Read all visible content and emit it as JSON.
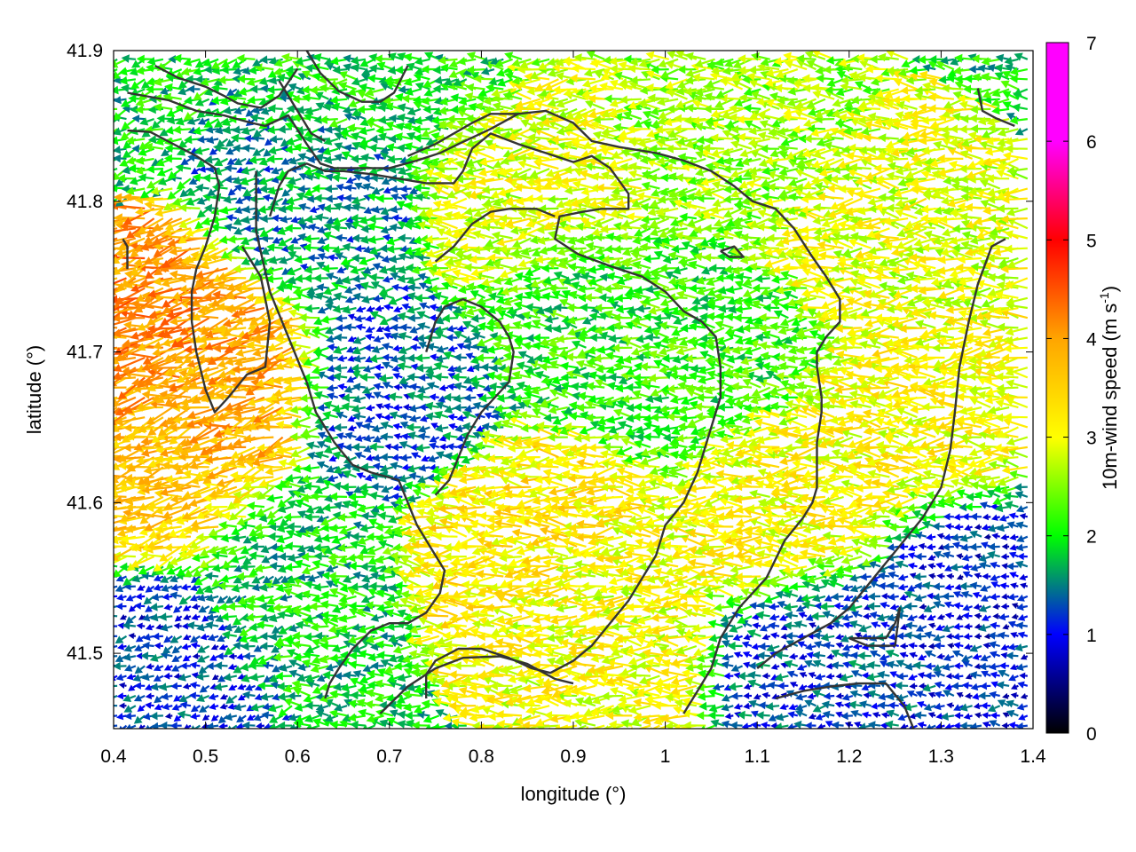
{
  "chart_data": {
    "type": "vector-field",
    "xlabel": "longitude (°)",
    "ylabel": "latitude (°)",
    "xlim": [
      0.4,
      1.4
    ],
    "ylim": [
      41.45,
      41.9
    ],
    "xticks": [
      "0.4",
      "0.5",
      "0.6",
      "0.7",
      "0.8",
      "0.9",
      "1",
      "1.1",
      "1.2",
      "1.3",
      "1.4"
    ],
    "yticks": [
      "41.5",
      "41.6",
      "41.7",
      "41.8",
      "41.9"
    ],
    "colorbar": {
      "label_main": "10m-wind speed (m s",
      "label_sup": "-1",
      "label_close": ")",
      "range": [
        0,
        7
      ],
      "ticks": [
        "0",
        "1",
        "2",
        "3",
        "4",
        "5",
        "6",
        "7"
      ],
      "colors": [
        "#000000",
        "#0000ff",
        "#00ff00",
        "#ffff00",
        "#ffa500",
        "#ff0000",
        "#ff00ff"
      ]
    },
    "wind_speed_regions": [
      {
        "lon": 0.47,
        "lat": 41.7,
        "speed": 4.8
      },
      {
        "lon": 0.52,
        "lat": 41.68,
        "speed": 4.5
      },
      {
        "lon": 0.46,
        "lat": 41.62,
        "speed": 4.2
      },
      {
        "lon": 0.65,
        "lat": 41.8,
        "speed": 1.8
      },
      {
        "lon": 0.72,
        "lat": 41.67,
        "speed": 1.5
      },
      {
        "lon": 0.85,
        "lat": 41.8,
        "speed": 3.4
      },
      {
        "lon": 0.9,
        "lat": 41.72,
        "speed": 2.4
      },
      {
        "lon": 0.85,
        "lat": 41.58,
        "speed": 3.8
      },
      {
        "lon": 0.93,
        "lat": 41.52,
        "speed": 3.5
      },
      {
        "lon": 1.15,
        "lat": 41.6,
        "speed": 3.6
      },
      {
        "lon": 1.25,
        "lat": 41.78,
        "speed": 3.4
      },
      {
        "lon": 1.3,
        "lat": 41.65,
        "speed": 3.6
      },
      {
        "lon": 1.35,
        "lat": 41.55,
        "speed": 1.2
      },
      {
        "lon": 0.45,
        "lat": 41.5,
        "speed": 1.3
      },
      {
        "lon": 1.2,
        "lat": 41.5,
        "speed": 1.4
      },
      {
        "lon": 0.6,
        "lat": 41.55,
        "speed": 2.2
      },
      {
        "lon": 1.05,
        "lat": 41.7,
        "speed": 2.5
      },
      {
        "lon": 0.7,
        "lat": 41.88,
        "speed": 2.3
      },
      {
        "lon": 1.1,
        "lat": 41.85,
        "speed": 3.0
      }
    ],
    "contours": [
      [
        [
          0.415,
          41.872
        ],
        [
          0.46,
          41.867
        ],
        [
          0.49,
          41.86
        ],
        [
          0.52,
          41.857
        ],
        [
          0.55,
          41.852
        ],
        [
          0.565,
          41.85
        ],
        [
          0.59,
          41.857
        ],
        [
          0.61,
          41.838
        ],
        [
          0.625,
          41.825
        ],
        [
          0.64,
          41.822
        ],
        [
          0.67,
          41.822
        ],
        [
          0.7,
          41.822
        ],
        [
          0.73,
          41.827
        ],
        [
          0.755,
          41.832
        ],
        [
          0.775,
          41.838
        ],
        [
          0.81,
          41.848
        ],
        [
          0.84,
          41.858
        ],
        [
          0.87,
          41.86
        ],
        [
          0.9,
          41.852
        ],
        [
          0.92,
          41.84
        ],
        [
          0.95,
          41.836
        ],
        [
          0.99,
          41.832
        ],
        [
          1.02,
          41.827
        ],
        [
          1.05,
          41.82
        ],
        [
          1.075,
          41.81
        ],
        [
          1.095,
          41.8
        ],
        [
          1.12,
          41.795
        ],
        [
          1.14,
          41.782
        ],
        [
          1.16,
          41.763
        ],
        [
          1.175,
          41.75
        ],
        [
          1.19,
          41.735
        ],
        [
          1.19,
          41.72
        ],
        [
          1.175,
          41.71
        ],
        [
          1.165,
          41.7
        ],
        [
          1.165,
          41.69
        ],
        [
          1.17,
          41.67
        ],
        [
          1.17,
          41.66
        ],
        [
          1.165,
          41.64
        ],
        [
          1.165,
          41.63
        ],
        [
          1.165,
          41.61
        ],
        [
          1.16,
          41.6
        ],
        [
          1.15,
          41.59
        ],
        [
          1.13,
          41.575
        ],
        [
          1.11,
          41.55
        ],
        [
          1.08,
          41.53
        ],
        [
          1.06,
          41.51
        ],
        [
          1.05,
          41.49
        ],
        [
          1.035,
          41.475
        ],
        [
          1.02,
          41.46
        ]
      ],
      [
        [
          0.415,
          41.847
        ],
        [
          0.44,
          41.846
        ],
        [
          0.465,
          41.838
        ],
        [
          0.49,
          41.83
        ],
        [
          0.51,
          41.822
        ],
        [
          0.515,
          41.81
        ],
        [
          0.51,
          41.79
        ],
        [
          0.5,
          41.77
        ],
        [
          0.49,
          41.755
        ],
        [
          0.485,
          41.74
        ],
        [
          0.485,
          41.72
        ],
        [
          0.49,
          41.7
        ],
        [
          0.5,
          41.675
        ],
        [
          0.51,
          41.66
        ],
        [
          0.525,
          41.67
        ],
        [
          0.545,
          41.685
        ],
        [
          0.565,
          41.69
        ],
        [
          0.57,
          41.72
        ],
        [
          0.56,
          41.75
        ],
        [
          0.55,
          41.76
        ],
        [
          0.54,
          41.77
        ]
      ],
      [
        [
          0.445,
          41.89
        ],
        [
          0.47,
          41.882
        ],
        [
          0.5,
          41.876
        ],
        [
          0.52,
          41.87
        ],
        [
          0.535,
          41.865
        ],
        [
          0.56,
          41.862
        ],
        [
          0.58,
          41.87
        ],
        [
          0.6,
          41.888
        ]
      ],
      [
        [
          0.58,
          41.88
        ],
        [
          0.6,
          41.86
        ],
        [
          0.615,
          41.845
        ],
        [
          0.63,
          41.84
        ]
      ],
      [
        [
          0.61,
          41.9
        ],
        [
          0.625,
          41.885
        ],
        [
          0.645,
          41.873
        ],
        [
          0.67,
          41.866
        ],
        [
          0.69,
          41.866
        ],
        [
          0.705,
          41.872
        ],
        [
          0.72,
          41.89
        ]
      ],
      [
        [
          0.72,
          41.83
        ],
        [
          0.75,
          41.838
        ],
        [
          0.77,
          41.845
        ],
        [
          0.79,
          41.852
        ],
        [
          0.81,
          41.858
        ],
        [
          0.84,
          41.858
        ]
      ],
      [
        [
          0.57,
          41.79
        ],
        [
          0.58,
          41.81
        ],
        [
          0.59,
          41.82
        ],
        [
          0.61,
          41.825
        ],
        [
          0.63,
          41.82
        ],
        [
          0.65,
          41.82
        ],
        [
          0.68,
          41.818
        ],
        [
          0.71,
          41.815
        ],
        [
          0.74,
          41.812
        ],
        [
          0.77,
          41.812
        ],
        [
          0.78,
          41.82
        ],
        [
          0.79,
          41.835
        ],
        [
          0.81,
          41.845
        ],
        [
          0.84,
          41.838
        ],
        [
          0.87,
          41.832
        ],
        [
          0.9,
          41.826
        ],
        [
          0.92,
          41.83
        ],
        [
          0.94,
          41.822
        ],
        [
          0.96,
          41.805
        ],
        [
          0.96,
          41.795
        ],
        [
          0.93,
          41.795
        ],
        [
          0.91,
          41.793
        ],
        [
          0.885,
          41.79
        ],
        [
          0.88,
          41.775
        ],
        [
          0.905,
          41.765
        ],
        [
          0.94,
          41.757
        ],
        [
          0.975,
          41.75
        ],
        [
          1.0,
          41.74
        ],
        [
          1.02,
          41.727
        ],
        [
          1.04,
          41.72
        ],
        [
          1.055,
          41.71
        ],
        [
          1.06,
          41.69
        ],
        [
          1.06,
          41.67
        ],
        [
          1.055,
          41.66
        ],
        [
          1.045,
          41.64
        ],
        [
          1.035,
          41.62
        ],
        [
          1.02,
          41.6
        ],
        [
          1.0,
          41.585
        ],
        [
          0.99,
          41.565
        ],
        [
          0.975,
          41.55
        ],
        [
          0.96,
          41.535
        ],
        [
          0.94,
          41.52
        ],
        [
          0.92,
          41.505
        ],
        [
          0.9,
          41.495
        ],
        [
          0.875,
          41.487
        ],
        [
          0.855,
          41.49
        ],
        [
          0.83,
          41.497
        ],
        [
          0.8,
          41.503
        ],
        [
          0.775,
          41.503
        ],
        [
          0.75,
          41.495
        ],
        [
          0.74,
          41.486
        ],
        [
          0.74,
          41.47
        ]
      ],
      [
        [
          0.69,
          41.46
        ],
        [
          0.72,
          41.478
        ],
        [
          0.75,
          41.49
        ],
        [
          0.78,
          41.497
        ],
        [
          0.82,
          41.498
        ],
        [
          0.85,
          41.493
        ],
        [
          0.88,
          41.483
        ],
        [
          0.9,
          41.48
        ]
      ],
      [
        [
          0.555,
          41.82
        ],
        [
          0.555,
          41.78
        ],
        [
          0.57,
          41.74
        ],
        [
          0.59,
          41.71
        ],
        [
          0.61,
          41.68
        ],
        [
          0.62,
          41.66
        ],
        [
          0.64,
          41.64
        ],
        [
          0.66,
          41.625
        ],
        [
          0.68,
          41.62
        ],
        [
          0.71,
          41.615
        ],
        [
          0.72,
          41.6
        ],
        [
          0.73,
          41.585
        ],
        [
          0.745,
          41.57
        ],
        [
          0.76,
          41.555
        ],
        [
          0.755,
          41.54
        ],
        [
          0.74,
          41.527
        ],
        [
          0.72,
          41.52
        ],
        [
          0.7,
          41.52
        ],
        [
          0.68,
          41.515
        ],
        [
          0.66,
          41.503
        ],
        [
          0.645,
          41.49
        ],
        [
          0.635,
          41.48
        ],
        [
          0.63,
          41.47
        ]
      ],
      [
        [
          0.75,
          41.76
        ],
        [
          0.77,
          41.77
        ],
        [
          0.79,
          41.785
        ],
        [
          0.81,
          41.793
        ],
        [
          0.83,
          41.795
        ],
        [
          0.86,
          41.795
        ],
        [
          0.88,
          41.79
        ]
      ],
      [
        [
          0.74,
          41.7
        ],
        [
          0.75,
          41.72
        ],
        [
          0.76,
          41.73
        ],
        [
          0.78,
          41.735
        ],
        [
          0.8,
          41.73
        ],
        [
          0.82,
          41.72
        ],
        [
          0.83,
          41.71
        ],
        [
          0.835,
          41.7
        ],
        [
          0.83,
          41.68
        ],
        [
          0.815,
          41.67
        ],
        [
          0.8,
          41.66
        ],
        [
          0.785,
          41.645
        ],
        [
          0.775,
          41.63
        ],
        [
          0.765,
          41.615
        ],
        [
          0.75,
          41.605
        ]
      ],
      [
        [
          1.1,
          41.49
        ],
        [
          1.12,
          41.5
        ],
        [
          1.15,
          41.51
        ],
        [
          1.18,
          41.52
        ],
        [
          1.2,
          41.53
        ],
        [
          1.22,
          41.545
        ],
        [
          1.24,
          41.56
        ],
        [
          1.26,
          41.575
        ],
        [
          1.28,
          41.59
        ],
        [
          1.3,
          41.61
        ],
        [
          1.31,
          41.635
        ],
        [
          1.315,
          41.66
        ],
        [
          1.32,
          41.69
        ],
        [
          1.33,
          41.72
        ],
        [
          1.34,
          41.745
        ],
        [
          1.355,
          41.77
        ],
        [
          1.37,
          41.775
        ]
      ],
      [
        [
          1.34,
          41.875
        ],
        [
          1.345,
          41.86
        ],
        [
          1.36,
          41.855
        ],
        [
          1.38,
          41.85
        ]
      ],
      [
        [
          1.06,
          41.767
        ],
        [
          1.07,
          41.763
        ],
        [
          1.085,
          41.763
        ],
        [
          1.075,
          41.77
        ],
        [
          1.06,
          41.767
        ]
      ],
      [
        [
          1.2,
          41.51
        ],
        [
          1.22,
          41.51
        ],
        [
          1.24,
          41.51
        ],
        [
          1.25,
          41.52
        ],
        [
          1.255,
          41.53
        ],
        [
          1.25,
          41.505
        ],
        [
          1.22,
          41.505
        ],
        [
          1.2,
          41.51
        ]
      ],
      [
        [
          1.12,
          41.47
        ],
        [
          1.15,
          41.475
        ],
        [
          1.18,
          41.478
        ],
        [
          1.21,
          41.48
        ],
        [
          1.24,
          41.48
        ],
        [
          1.26,
          41.465
        ],
        [
          1.27,
          41.45
        ]
      ],
      [
        [
          0.415,
          41.755
        ],
        [
          0.415,
          41.77
        ],
        [
          0.41,
          41.775
        ]
      ]
    ]
  }
}
